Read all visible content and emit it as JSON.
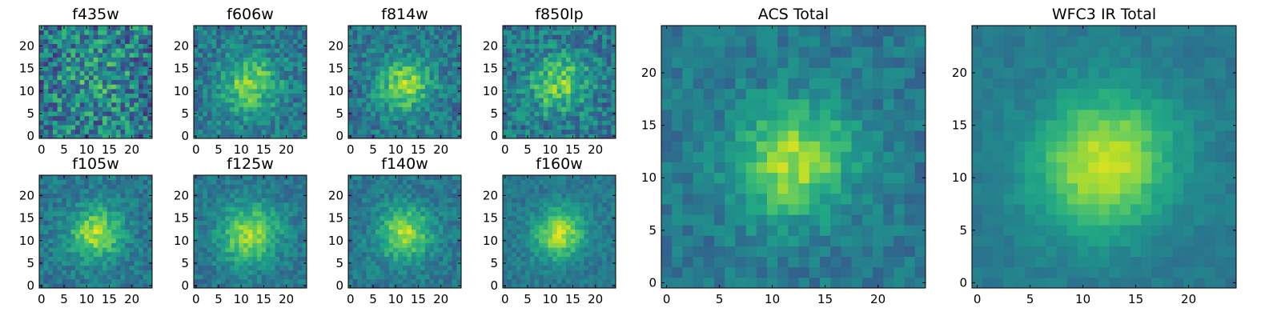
{
  "chart_data": [
    {
      "type": "heatmap",
      "title": "f435w",
      "colormap": "viridis",
      "grid": false,
      "xlim": [
        -0.5,
        24.5
      ],
      "ylim": [
        -0.5,
        24.5
      ],
      "xticks": [
        0,
        5,
        10,
        15,
        20
      ],
      "yticks": [
        0,
        5,
        10,
        15,
        20
      ],
      "sigma": 6.0,
      "noise": 0.55,
      "peak": 0.25,
      "seed": 1
    },
    {
      "type": "heatmap",
      "title": "f606w",
      "colormap": "viridis",
      "grid": false,
      "xlim": [
        -0.5,
        24.5
      ],
      "ylim": [
        -0.5,
        24.5
      ],
      "xticks": [
        0,
        5,
        10,
        15,
        20
      ],
      "yticks": [
        0,
        5,
        10,
        15,
        20
      ],
      "sigma": 4.5,
      "noise": 0.32,
      "peak": 0.75,
      "seed": 2
    },
    {
      "type": "heatmap",
      "title": "f814w",
      "colormap": "viridis",
      "grid": false,
      "xlim": [
        -0.5,
        24.5
      ],
      "ylim": [
        -0.5,
        24.5
      ],
      "xticks": [
        0,
        5,
        10,
        15,
        20
      ],
      "yticks": [
        0,
        5,
        10,
        15,
        20
      ],
      "sigma": 4.2,
      "noise": 0.3,
      "peak": 0.8,
      "seed": 3
    },
    {
      "type": "heatmap",
      "title": "f850lp",
      "colormap": "viridis",
      "grid": false,
      "xlim": [
        -0.5,
        24.5
      ],
      "ylim": [
        -0.5,
        24.5
      ],
      "xticks": [
        0,
        5,
        10,
        15,
        20
      ],
      "yticks": [
        0,
        5,
        10,
        15,
        20
      ],
      "sigma": 4.5,
      "noise": 0.36,
      "peak": 0.7,
      "seed": 4
    },
    {
      "type": "heatmap",
      "title": "f105w",
      "colormap": "viridis",
      "grid": false,
      "xlim": [
        -0.5,
        24.5
      ],
      "ylim": [
        -0.5,
        24.5
      ],
      "xticks": [
        0,
        5,
        10,
        15,
        20
      ],
      "yticks": [
        0,
        5,
        10,
        15,
        20
      ],
      "sigma": 4.2,
      "noise": 0.24,
      "peak": 0.85,
      "seed": 5
    },
    {
      "type": "heatmap",
      "title": "f125w",
      "colormap": "viridis",
      "grid": false,
      "xlim": [
        -0.5,
        24.5
      ],
      "ylim": [
        -0.5,
        24.5
      ],
      "xticks": [
        0,
        5,
        10,
        15,
        20
      ],
      "yticks": [
        0,
        5,
        10,
        15,
        20
      ],
      "sigma": 4.6,
      "noise": 0.22,
      "peak": 0.85,
      "seed": 6
    },
    {
      "type": "heatmap",
      "title": "f140w",
      "colormap": "viridis",
      "grid": false,
      "xlim": [
        -0.5,
        24.5
      ],
      "ylim": [
        -0.5,
        24.5
      ],
      "xticks": [
        0,
        5,
        10,
        15,
        20
      ],
      "yticks": [
        0,
        5,
        10,
        15,
        20
      ],
      "sigma": 4.2,
      "noise": 0.22,
      "peak": 0.85,
      "seed": 7
    },
    {
      "type": "heatmap",
      "title": "f160w",
      "colormap": "viridis",
      "grid": false,
      "xlim": [
        -0.5,
        24.5
      ],
      "ylim": [
        -0.5,
        24.5
      ],
      "xticks": [
        0,
        5,
        10,
        15,
        20
      ],
      "yticks": [
        0,
        5,
        10,
        15,
        20
      ],
      "sigma": 4.0,
      "noise": 0.18,
      "peak": 0.9,
      "seed": 8
    },
    {
      "type": "heatmap",
      "title": "ACS Total",
      "colormap": "viridis",
      "grid": false,
      "xlim": [
        -0.5,
        24.5
      ],
      "ylim": [
        -0.5,
        24.5
      ],
      "xticks": [
        0,
        5,
        10,
        15,
        20
      ],
      "yticks": [
        0,
        5,
        10,
        15,
        20
      ],
      "sigma": 4.0,
      "noise": 0.2,
      "peak": 0.85,
      "seed": 9
    },
    {
      "type": "heatmap",
      "title": "WFC3 IR Total",
      "colormap": "viridis",
      "grid": false,
      "xlim": [
        -0.5,
        24.5
      ],
      "ylim": [
        -0.5,
        24.5
      ],
      "xticks": [
        0,
        5,
        10,
        15,
        20
      ],
      "yticks": [
        0,
        5,
        10,
        15,
        20
      ],
      "sigma": 4.8,
      "noise": 0.1,
      "peak": 0.95,
      "seed": 10
    }
  ]
}
